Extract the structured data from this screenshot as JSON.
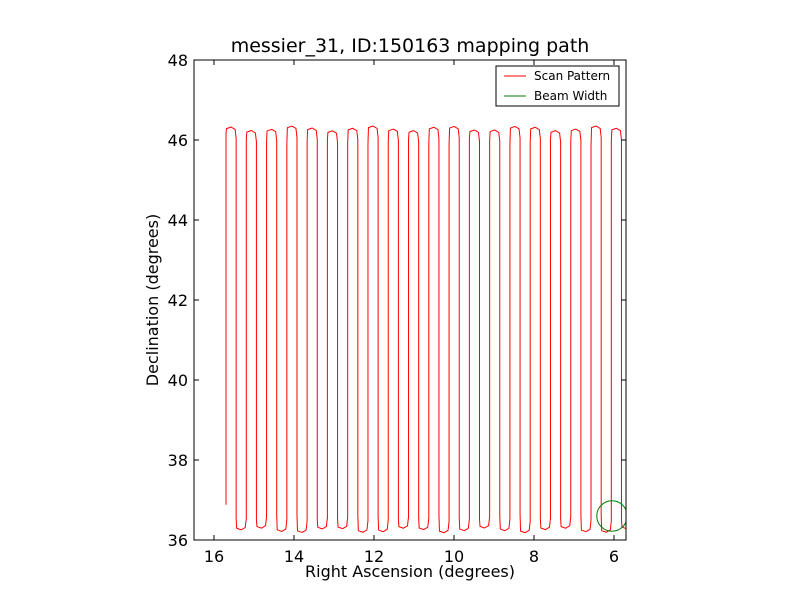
{
  "chart_data": {
    "type": "line",
    "title": "messier_31, ID:150163 mapping path",
    "xlabel": "Right Ascension (degrees)",
    "ylabel": "Declination (degrees)",
    "xlim": [
      16.5,
      5.7
    ],
    "ylim": [
      36,
      48
    ],
    "x_ticks": [
      16,
      14,
      12,
      10,
      8,
      6
    ],
    "y_ticks": [
      36,
      38,
      40,
      42,
      44,
      46,
      48
    ],
    "x_tick_labels": [
      "16",
      "14",
      "12",
      "10",
      "8",
      "6"
    ],
    "y_tick_labels": [
      "36",
      "38",
      "40",
      "42",
      "44",
      "46",
      "48"
    ],
    "legend_position": "top-right",
    "series": [
      {
        "name": "Scan Pattern",
        "color": "#ff0000",
        "scan": {
          "ra_start": 15.7,
          "ra_step": -0.2535,
          "legs": 40,
          "dec_low": 36.28,
          "dec_high": 46.25,
          "final_leg_dec": 37.6
        }
      },
      {
        "name": "Beam Width",
        "color": "#007f00",
        "circle": {
          "ra": 6.05,
          "dec": 36.6,
          "radius_deg": 0.38
        }
      }
    ]
  }
}
